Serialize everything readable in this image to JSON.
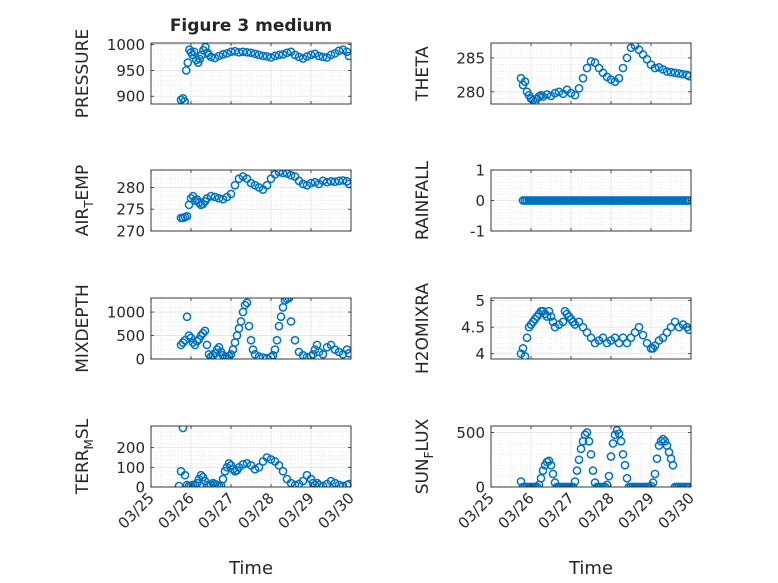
{
  "figure_title": "Figure 3 medium",
  "colors": {
    "marker": "#0072BD",
    "axis": "#262626",
    "grid": "#d9d9d9"
  },
  "chart_data": [
    {
      "type": "scatter",
      "marker": "circle-open",
      "grid": true,
      "ylabel": "PRESSURE",
      "xlabel": "",
      "xlim": [
        "2017-03-25",
        "2017-03-30"
      ],
      "ylim": [
        885,
        1003
      ],
      "yticks": [
        900,
        950,
        1000
      ],
      "ytick_labels": [
        "900",
        "950",
        "1000"
      ],
      "xtick_labels": [],
      "x": [
        0.75,
        0.8,
        0.84,
        0.88,
        0.92,
        0.96,
        1.0,
        1.04,
        1.08,
        1.13,
        1.18,
        1.22,
        1.27,
        1.31,
        1.36,
        1.41,
        1.45,
        1.5,
        1.6,
        1.7,
        1.8,
        1.9,
        2.0,
        2.1,
        2.2,
        2.3,
        2.4,
        2.5,
        2.6,
        2.7,
        2.8,
        2.9,
        3.0,
        3.1,
        3.2,
        3.3,
        3.4,
        3.5,
        3.6,
        3.7,
        3.8,
        3.9,
        4.0,
        4.1,
        4.2,
        4.3,
        4.4,
        4.5,
        4.6,
        4.7,
        4.8,
        4.9,
        4.95
      ],
      "y": [
        893,
        896,
        890,
        950,
        965,
        990,
        985,
        980,
        986,
        970,
        965,
        972,
        980,
        989,
        995,
        984,
        980,
        976,
        974,
        978,
        981,
        983,
        986,
        987,
        985,
        986,
        985,
        984,
        982,
        980,
        978,
        977,
        975,
        978,
        980,
        981,
        984,
        986,
        980,
        976,
        973,
        977,
        980,
        982,
        978,
        976,
        975,
        980,
        983,
        988,
        990,
        986,
        978
      ]
    },
    {
      "type": "scatter",
      "marker": "circle-open",
      "grid": true,
      "ylabel": "THETA",
      "xlabel": "",
      "xlim": [
        "2017-03-25",
        "2017-03-30"
      ],
      "ylim": [
        278.2,
        287.2
      ],
      "yticks": [
        280,
        285
      ],
      "ytick_labels": [
        "280",
        "285"
      ],
      "xtick_labels": [],
      "x": [
        0.75,
        0.8,
        0.85,
        0.9,
        0.95,
        1.0,
        1.05,
        1.1,
        1.15,
        1.2,
        1.25,
        1.3,
        1.4,
        1.5,
        1.6,
        1.7,
        1.8,
        1.9,
        2.0,
        2.1,
        2.2,
        2.3,
        2.4,
        2.5,
        2.6,
        2.7,
        2.8,
        2.9,
        3.0,
        3.1,
        3.2,
        3.3,
        3.4,
        3.5,
        3.6,
        3.7,
        3.8,
        3.9,
        4.0,
        4.1,
        4.2,
        4.3,
        4.4,
        4.5,
        4.6,
        4.7,
        4.8,
        4.9,
        4.95
      ],
      "y": [
        282,
        281,
        281.5,
        280,
        279.5,
        279,
        278.8,
        278.5,
        279,
        279.3,
        279.5,
        279.3,
        279.6,
        279.4,
        279.8,
        280,
        279.7,
        280.3,
        279.8,
        279.5,
        280.5,
        282,
        283.5,
        284.5,
        284.3,
        283.5,
        282.8,
        282.2,
        281.8,
        281.5,
        282,
        283.5,
        285,
        286.5,
        286.8,
        286.2,
        285.5,
        284.8,
        284,
        283.5,
        283.6,
        283.3,
        283,
        282.9,
        282.8,
        282.7,
        282.6,
        282.5,
        282.3
      ]
    },
    {
      "type": "scatter",
      "marker": "circle-open",
      "grid": true,
      "ylabel": "AIR_TEMP",
      "xlabel": "",
      "xlim": [
        "2017-03-25",
        "2017-03-30"
      ],
      "ylim": [
        270,
        284
      ],
      "yticks": [
        270,
        275,
        280
      ],
      "ytick_labels": [
        "270",
        "275",
        "280"
      ],
      "xtick_labels": [],
      "x": [
        0.75,
        0.8,
        0.85,
        0.9,
        0.95,
        1.0,
        1.05,
        1.1,
        1.15,
        1.2,
        1.25,
        1.3,
        1.35,
        1.4,
        1.5,
        1.6,
        1.7,
        1.8,
        1.9,
        2.0,
        2.1,
        2.2,
        2.3,
        2.4,
        2.5,
        2.6,
        2.7,
        2.8,
        2.9,
        3.0,
        3.1,
        3.2,
        3.3,
        3.4,
        3.5,
        3.6,
        3.7,
        3.8,
        3.9,
        4.0,
        4.1,
        4.2,
        4.3,
        4.4,
        4.5,
        4.6,
        4.7,
        4.8,
        4.9,
        4.95
      ],
      "y": [
        273,
        273,
        273.2,
        273.4,
        276,
        277.5,
        278,
        277,
        277.2,
        276.5,
        276,
        276.2,
        276.8,
        277.5,
        278,
        277.8,
        277.5,
        277.3,
        277.8,
        278.5,
        280.5,
        282,
        282.5,
        282,
        281,
        280.5,
        280,
        279.5,
        280.5,
        282,
        283,
        283.5,
        283.3,
        283.2,
        282.8,
        282.5,
        281.5,
        280.8,
        280.5,
        281,
        281.2,
        280.8,
        281.5,
        281.2,
        281.4,
        281.3,
        281.5,
        281.6,
        281.4,
        280.8
      ]
    },
    {
      "type": "scatter",
      "marker": "circle-open",
      "grid": true,
      "ylabel": "RAINFALL",
      "xlabel": "",
      "xlim": [
        "2017-03-25",
        "2017-03-30"
      ],
      "ylim": [
        -1,
        1
      ],
      "yticks": [
        -1,
        0,
        1
      ],
      "ytick_labels": [
        "-1",
        "0",
        "1"
      ],
      "xtick_labels": [],
      "x": [
        0.8,
        0.85,
        0.9,
        0.95,
        1.0,
        1.05,
        1.1,
        1.15,
        1.2,
        1.25,
        1.3,
        1.35,
        1.4,
        1.45,
        1.5,
        1.55,
        1.6,
        1.65,
        1.7,
        1.75,
        1.8,
        1.85,
        1.9,
        1.95,
        2.0,
        2.05,
        2.1,
        2.15,
        2.2,
        2.25,
        2.3,
        2.35,
        2.4,
        2.45,
        2.5,
        2.55,
        2.6,
        2.65,
        2.7,
        2.75,
        2.8,
        2.85,
        2.9,
        2.95,
        3.0,
        3.05,
        3.1,
        3.15,
        3.2,
        3.25,
        3.3,
        3.35,
        3.4,
        3.45,
        3.5,
        3.55,
        3.6,
        3.65,
        3.7,
        3.75,
        3.8,
        3.85,
        3.9,
        3.95,
        4.0,
        4.05,
        4.1,
        4.15,
        4.2,
        4.25,
        4.3,
        4.35,
        4.4,
        4.45,
        4.5,
        4.55,
        4.6,
        4.65,
        4.7,
        4.75,
        4.8,
        4.85,
        4.9,
        4.95
      ],
      "y": [
        0,
        0,
        0,
        0,
        0,
        0,
        0,
        0,
        0,
        0,
        0,
        0,
        0,
        0,
        0,
        0,
        0,
        0,
        0,
        0,
        0,
        0,
        0,
        0,
        0,
        0,
        0,
        0,
        0,
        0,
        0,
        0,
        0,
        0,
        0,
        0,
        0,
        0,
        0,
        0,
        0,
        0,
        0,
        0,
        0,
        0,
        0,
        0,
        0,
        0,
        0,
        0,
        0,
        0,
        0,
        0,
        0,
        0,
        0,
        0,
        0,
        0,
        0,
        0,
        0,
        0,
        0,
        0,
        0,
        0,
        0,
        0,
        0,
        0,
        0,
        0,
        0,
        0,
        0,
        0,
        0,
        0,
        0,
        0
      ]
    },
    {
      "type": "scatter",
      "marker": "circle-open",
      "grid": true,
      "ylabel": "MIXDEPTH",
      "xlabel": "",
      "xlim": [
        "2017-03-25",
        "2017-03-30"
      ],
      "ylim": [
        0,
        1300
      ],
      "yticks": [
        0,
        500,
        1000
      ],
      "ytick_labels": [
        "0",
        "500",
        "1000"
      ],
      "xtick_labels": [],
      "x": [
        0.75,
        0.8,
        0.85,
        0.9,
        0.95,
        1.0,
        1.05,
        1.1,
        1.15,
        1.2,
        1.25,
        1.3,
        1.35,
        1.4,
        1.45,
        1.5,
        1.55,
        1.6,
        1.65,
        1.7,
        1.75,
        1.8,
        1.85,
        1.9,
        1.95,
        2.0,
        2.05,
        2.1,
        2.15,
        2.2,
        2.25,
        2.3,
        2.35,
        2.4,
        2.45,
        2.5,
        2.55,
        2.6,
        2.7,
        2.8,
        2.9,
        3.0,
        3.05,
        3.1,
        3.15,
        3.2,
        3.25,
        3.3,
        3.35,
        3.4,
        3.45,
        3.5,
        3.6,
        3.7,
        3.8,
        3.9,
        4.0,
        4.05,
        4.1,
        4.15,
        4.2,
        4.3,
        4.4,
        4.5,
        4.6,
        4.7,
        4.8,
        4.9,
        4.95
      ],
      "y": [
        300,
        350,
        400,
        900,
        500,
        450,
        350,
        300,
        380,
        420,
        500,
        550,
        600,
        300,
        100,
        50,
        80,
        120,
        200,
        250,
        150,
        80,
        50,
        30,
        60,
        100,
        200,
        350,
        500,
        650,
        800,
        1000,
        1150,
        1200,
        700,
        400,
        200,
        100,
        50,
        30,
        20,
        40,
        80,
        200,
        400,
        700,
        900,
        1100,
        1250,
        1280,
        1300,
        800,
        400,
        150,
        80,
        40,
        60,
        100,
        200,
        300,
        150,
        100,
        250,
        300,
        200,
        150,
        100,
        200,
        120
      ]
    },
    {
      "type": "scatter",
      "marker": "circle-open",
      "grid": true,
      "ylabel": "H2OMIXRA",
      "xlabel": "",
      "xlim": [
        "2017-03-25",
        "2017-03-30"
      ],
      "ylim": [
        3.9,
        5.05
      ],
      "yticks": [
        4,
        4.5,
        5
      ],
      "ytick_labels": [
        "4",
        "4.5",
        "5"
      ],
      "xtick_labels": [],
      "x": [
        0.75,
        0.8,
        0.85,
        0.9,
        0.95,
        1.0,
        1.05,
        1.1,
        1.15,
        1.2,
        1.25,
        1.3,
        1.35,
        1.4,
        1.45,
        1.5,
        1.55,
        1.6,
        1.7,
        1.8,
        1.85,
        1.9,
        1.95,
        2.0,
        2.05,
        2.1,
        2.2,
        2.3,
        2.4,
        2.5,
        2.6,
        2.7,
        2.8,
        2.9,
        3.0,
        3.1,
        3.2,
        3.3,
        3.4,
        3.5,
        3.6,
        3.7,
        3.8,
        3.9,
        4.0,
        4.05,
        4.1,
        4.2,
        4.3,
        4.4,
        4.5,
        4.6,
        4.7,
        4.8,
        4.9,
        4.95
      ],
      "y": [
        4.0,
        4.1,
        3.95,
        4.3,
        4.5,
        4.55,
        4.6,
        4.65,
        4.7,
        4.75,
        4.8,
        4.8,
        4.75,
        4.7,
        4.8,
        4.7,
        4.6,
        4.5,
        4.55,
        4.6,
        4.8,
        4.75,
        4.7,
        4.65,
        4.6,
        4.55,
        4.6,
        4.5,
        4.4,
        4.3,
        4.2,
        4.25,
        4.3,
        4.2,
        4.25,
        4.3,
        4.2,
        4.3,
        4.2,
        4.3,
        4.4,
        4.5,
        4.35,
        4.2,
        4.1,
        4.1,
        4.15,
        4.25,
        4.3,
        4.4,
        4.5,
        4.6,
        4.5,
        4.55,
        4.5,
        4.45
      ]
    },
    {
      "type": "scatter",
      "marker": "circle-open",
      "grid": true,
      "ylabel": "TERR_MSL",
      "xlabel": "Time",
      "xlim": [
        "2017-03-25",
        "2017-03-30"
      ],
      "ylim": [
        0,
        310
      ],
      "yticks": [
        0,
        100,
        200
      ],
      "ytick_labels": [
        "0",
        "100",
        "200"
      ],
      "xtick_labels": [
        "03/25",
        "03/26",
        "03/27",
        "03/28",
        "03/29",
        "03/30"
      ],
      "x": [
        0.7,
        0.75,
        0.8,
        0.85,
        0.9,
        0.95,
        1.0,
        1.05,
        1.1,
        1.15,
        1.2,
        1.25,
        1.3,
        1.35,
        1.4,
        1.45,
        1.5,
        1.55,
        1.6,
        1.65,
        1.7,
        1.75,
        1.8,
        1.85,
        1.9,
        1.95,
        2.0,
        2.05,
        2.1,
        2.15,
        2.2,
        2.3,
        2.4,
        2.5,
        2.6,
        2.7,
        2.8,
        2.9,
        3.0,
        3.1,
        3.2,
        3.3,
        3.4,
        3.5,
        3.6,
        3.7,
        3.8,
        3.9,
        4.0,
        4.05,
        4.1,
        4.15,
        4.2,
        4.3,
        4.4,
        4.5,
        4.6,
        4.7,
        4.8,
        4.9,
        4.95
      ],
      "y": [
        5,
        80,
        300,
        60,
        10,
        5,
        8,
        10,
        12,
        20,
        40,
        60,
        50,
        30,
        10,
        5,
        10,
        20,
        15,
        10,
        5,
        8,
        40,
        80,
        100,
        120,
        110,
        90,
        80,
        85,
        100,
        115,
        120,
        110,
        90,
        100,
        130,
        150,
        140,
        130,
        110,
        80,
        40,
        20,
        10,
        15,
        30,
        60,
        40,
        20,
        10,
        20,
        10,
        5,
        15,
        30,
        20,
        10,
        5,
        10,
        15
      ]
    },
    {
      "type": "scatter",
      "marker": "circle-open",
      "grid": true,
      "ylabel": "SUN_FLUX",
      "xlabel": "Time",
      "xlim": [
        "2017-03-25",
        "2017-03-30"
      ],
      "ylim": [
        0,
        560
      ],
      "yticks": [
        0,
        500
      ],
      "ytick_labels": [
        "0",
        "500"
      ],
      "xtick_labels": [
        "03/25",
        "03/26",
        "03/27",
        "03/28",
        "03/29",
        "03/30"
      ],
      "x": [
        0.75,
        0.8,
        0.85,
        0.9,
        0.95,
        1.0,
        1.05,
        1.1,
        1.15,
        1.2,
        1.25,
        1.3,
        1.35,
        1.4,
        1.45,
        1.5,
        1.55,
        1.6,
        1.65,
        1.7,
        1.75,
        1.8,
        1.85,
        1.9,
        1.95,
        2.0,
        2.05,
        2.1,
        2.15,
        2.2,
        2.25,
        2.3,
        2.35,
        2.4,
        2.45,
        2.5,
        2.55,
        2.6,
        2.65,
        2.7,
        2.75,
        2.8,
        2.85,
        2.9,
        2.95,
        3.0,
        3.05,
        3.1,
        3.15,
        3.2,
        3.25,
        3.3,
        3.35,
        3.4,
        3.45,
        3.5,
        3.55,
        3.6,
        3.65,
        3.7,
        3.75,
        3.8,
        3.85,
        3.9,
        3.95,
        4.0,
        4.05,
        4.1,
        4.15,
        4.2,
        4.25,
        4.3,
        4.35,
        4.4,
        4.45,
        4.5,
        4.55,
        4.6,
        4.65,
        4.7,
        4.75,
        4.8,
        4.85,
        4.9,
        4.95
      ],
      "y": [
        50,
        0,
        0,
        0,
        0,
        0,
        0,
        0,
        0,
        20,
        80,
        150,
        200,
        230,
        240,
        200,
        120,
        40,
        0,
        0,
        0,
        0,
        0,
        0,
        0,
        0,
        0,
        50,
        150,
        250,
        350,
        420,
        480,
        500,
        420,
        300,
        150,
        40,
        0,
        0,
        0,
        0,
        0,
        20,
        100,
        280,
        400,
        480,
        520,
        490,
        420,
        300,
        200,
        80,
        0,
        0,
        0,
        0,
        0,
        0,
        0,
        0,
        0,
        0,
        0,
        10,
        40,
        120,
        260,
        380,
        420,
        440,
        420,
        380,
        320,
        260,
        200,
        0,
        0,
        0,
        0,
        0,
        0,
        0,
        0
      ]
    }
  ]
}
